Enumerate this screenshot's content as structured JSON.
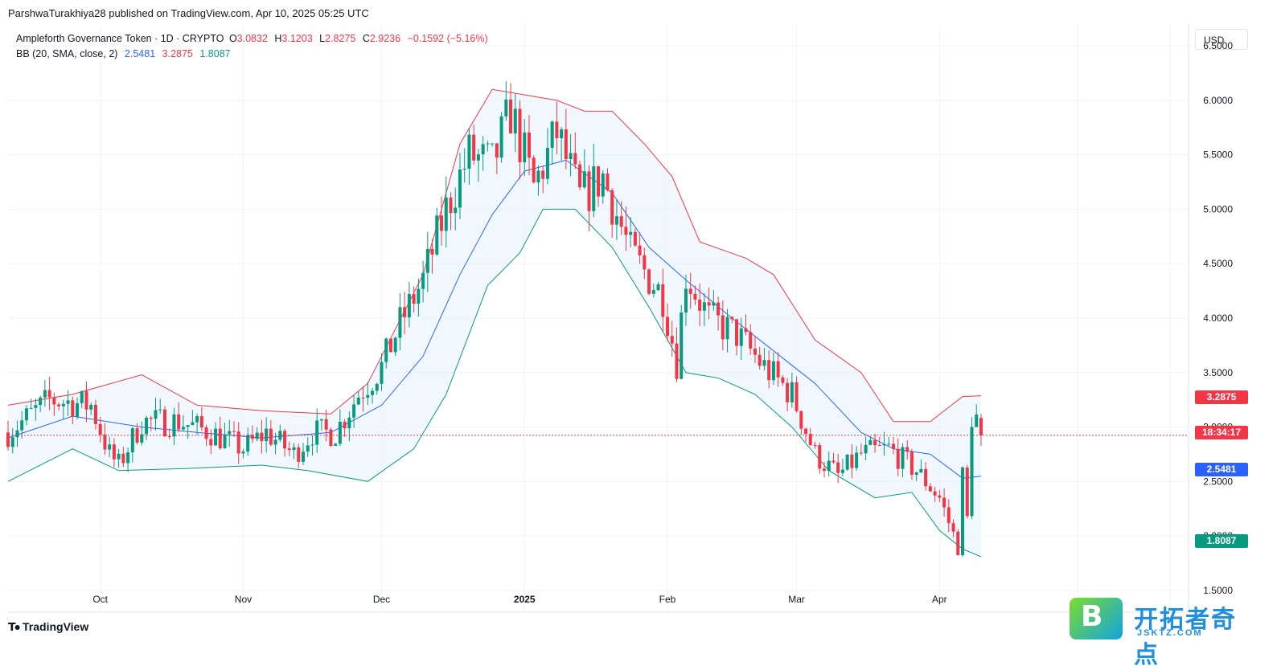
{
  "attribution": "ParshwaTurakhiya28 published on TradingView.com, Apr 10, 2025 05:25 UTC",
  "legend": {
    "symbol": "Ampleforth Governance Token · 1D · CRYPTO",
    "o_label": "O",
    "o": "3.0832",
    "h_label": "H",
    "h": "3.1203",
    "l_label": "L",
    "l": "2.8275",
    "c_label": "C",
    "c": "2.9236",
    "change": "−0.1592 (−5.16%)",
    "bb_label": "BB (20, SMA, close, 2)",
    "bb_basis": "2.5481",
    "bb_upper": "3.2875",
    "bb_lower": "1.8087"
  },
  "currency": "USD",
  "badges": {
    "upper": "3.2875",
    "countdown": "18:34:17",
    "basis": "2.5481",
    "lower": "1.8087"
  },
  "footer": {
    "brand": "TradingView"
  },
  "watermark": {
    "title": "开拓者奇点",
    "url": "JSKTZ.COM",
    "letter": "B"
  },
  "colors": {
    "up": "#089981",
    "down": "#f23645",
    "basis": "#2962ff",
    "upper": "#f23645",
    "lower": "#089981",
    "fill": "#e3f2fd"
  },
  "chart_data": {
    "type": "candlestick",
    "title": "Ampleforth Governance Token · 1D · CRYPTO",
    "ylim": [
      1.3,
      6.7
    ],
    "y_ticks": [
      "6.5000",
      "6.0000",
      "5.5000",
      "5.0000",
      "4.5000",
      "4.0000",
      "3.5000",
      "3.0000",
      "2.5000",
      "2.0000",
      "1.5000"
    ],
    "x_ticks": [
      {
        "label": "Oct",
        "date": "2024-10-01"
      },
      {
        "label": "Nov",
        "date": "2024-11-01"
      },
      {
        "label": "Dec",
        "date": "2024-12-01"
      },
      {
        "label": "2025",
        "date": "2025-01-01",
        "bold": true
      },
      {
        "label": "Feb",
        "date": "2025-02-01"
      },
      {
        "label": "Mar",
        "date": "2025-03-01"
      },
      {
        "label": "Apr",
        "date": "2025-04-01"
      }
    ],
    "x_range": [
      "2024-09-11",
      "2025-05-25"
    ],
    "last_close": 2.9236,
    "close_anchors": [
      [
        "2024-09-11",
        2.95
      ],
      [
        "2024-09-20",
        3.25
      ],
      [
        "2024-09-29",
        3.2
      ],
      [
        "2024-10-03",
        2.75
      ],
      [
        "2024-10-05",
        2.65
      ],
      [
        "2024-10-10",
        3.05
      ],
      [
        "2024-10-18",
        3.05
      ],
      [
        "2024-10-25",
        2.95
      ],
      [
        "2024-11-01",
        2.8
      ],
      [
        "2024-11-06",
        2.95
      ],
      [
        "2024-11-12",
        2.75
      ],
      [
        "2024-11-16",
        2.95
      ],
      [
        "2024-11-21",
        2.95
      ],
      [
        "2024-11-26",
        3.3
      ],
      [
        "2024-12-01",
        3.55
      ],
      [
        "2024-12-05",
        3.95
      ],
      [
        "2024-12-10",
        4.35
      ],
      [
        "2024-12-15",
        5.0
      ],
      [
        "2024-12-20",
        5.5
      ],
      [
        "2024-12-25",
        5.4
      ],
      [
        "2024-12-29",
        5.9
      ],
      [
        "2025-01-03",
        5.2
      ],
      [
        "2025-01-08",
        5.7
      ],
      [
        "2025-01-13",
        5.1
      ],
      [
        "2025-01-18",
        5.3
      ],
      [
        "2025-01-24",
        4.6
      ],
      [
        "2025-01-31",
        4.2
      ],
      [
        "2025-02-03",
        3.6
      ],
      [
        "2025-02-05",
        4.4
      ],
      [
        "2025-02-10",
        4.0
      ],
      [
        "2025-02-16",
        3.85
      ],
      [
        "2025-02-22",
        3.55
      ],
      [
        "2025-02-28",
        3.3
      ],
      [
        "2025-03-05",
        2.75
      ],
      [
        "2025-03-10",
        2.55
      ],
      [
        "2025-03-15",
        2.75
      ],
      [
        "2025-03-21",
        2.8
      ],
      [
        "2025-03-27",
        2.6
      ],
      [
        "2025-04-01",
        2.35
      ],
      [
        "2025-04-05",
        1.9
      ],
      [
        "2025-04-06",
        2.55
      ],
      [
        "2025-04-07",
        2.15
      ],
      [
        "2025-04-08",
        3.1
      ],
      [
        "2025-04-09",
        3.08
      ],
      [
        "2025-04-10",
        2.9236
      ]
    ],
    "bollinger": {
      "basis_label": "2.5481",
      "upper_label": "3.2875",
      "lower_label": "1.8087",
      "upper": [
        [
          "2024-09-11",
          3.2
        ],
        [
          "2024-09-25",
          3.3
        ],
        [
          "2024-10-10",
          3.48
        ],
        [
          "2024-10-22",
          3.2
        ],
        [
          "2024-11-05",
          3.15
        ],
        [
          "2024-11-20",
          3.12
        ],
        [
          "2024-11-28",
          3.4
        ],
        [
          "2024-12-10",
          4.4
        ],
        [
          "2024-12-18",
          5.6
        ],
        [
          "2024-12-25",
          6.1
        ],
        [
          "2025-01-01",
          6.05
        ],
        [
          "2025-01-08",
          6.0
        ],
        [
          "2025-01-14",
          5.9
        ],
        [
          "2025-01-20",
          5.9
        ],
        [
          "2025-01-27",
          5.6
        ],
        [
          "2025-02-02",
          5.3
        ],
        [
          "2025-02-08",
          4.7
        ],
        [
          "2025-02-18",
          4.55
        ],
        [
          "2025-02-24",
          4.4
        ],
        [
          "2025-03-05",
          3.8
        ],
        [
          "2025-03-15",
          3.5
        ],
        [
          "2025-03-22",
          3.05
        ],
        [
          "2025-03-30",
          3.05
        ],
        [
          "2025-04-06",
          3.28
        ],
        [
          "2025-04-10",
          3.2875
        ]
      ],
      "basis": [
        [
          "2024-09-11",
          2.9
        ],
        [
          "2024-09-25",
          3.1
        ],
        [
          "2024-10-10",
          3.0
        ],
        [
          "2024-10-22",
          2.95
        ],
        [
          "2024-11-05",
          2.9
        ],
        [
          "2024-11-20",
          2.95
        ],
        [
          "2024-12-01",
          3.2
        ],
        [
          "2024-12-10",
          3.65
        ],
        [
          "2024-12-18",
          4.4
        ],
        [
          "2024-12-25",
          4.95
        ],
        [
          "2025-01-01",
          5.35
        ],
        [
          "2025-01-10",
          5.45
        ],
        [
          "2025-01-20",
          5.15
        ],
        [
          "2025-01-28",
          4.65
        ],
        [
          "2025-02-05",
          4.35
        ],
        [
          "2025-02-15",
          4.0
        ],
        [
          "2025-02-24",
          3.7
        ],
        [
          "2025-03-05",
          3.4
        ],
        [
          "2025-03-15",
          2.95
        ],
        [
          "2025-03-22",
          2.8
        ],
        [
          "2025-03-30",
          2.75
        ],
        [
          "2025-04-06",
          2.53
        ],
        [
          "2025-04-10",
          2.5481
        ]
      ],
      "lower": [
        [
          "2024-09-11",
          2.5
        ],
        [
          "2024-09-25",
          2.8
        ],
        [
          "2024-10-05",
          2.6
        ],
        [
          "2024-10-20",
          2.62
        ],
        [
          "2024-11-05",
          2.65
        ],
        [
          "2024-11-15",
          2.6
        ],
        [
          "2024-11-28",
          2.5
        ],
        [
          "2024-12-08",
          2.8
        ],
        [
          "2024-12-15",
          3.3
        ],
        [
          "2024-12-24",
          4.3
        ],
        [
          "2024-12-31",
          4.6
        ],
        [
          "2025-01-05",
          5.0
        ],
        [
          "2025-01-12",
          5.0
        ],
        [
          "2025-01-20",
          4.65
        ],
        [
          "2025-01-28",
          4.1
        ],
        [
          "2025-02-05",
          3.5
        ],
        [
          "2025-02-12",
          3.45
        ],
        [
          "2025-02-20",
          3.3
        ],
        [
          "2025-02-28",
          3.0
        ],
        [
          "2025-03-08",
          2.6
        ],
        [
          "2025-03-18",
          2.35
        ],
        [
          "2025-03-26",
          2.4
        ],
        [
          "2025-04-01",
          2.05
        ],
        [
          "2025-04-06",
          1.88
        ],
        [
          "2025-04-10",
          1.8087
        ]
      ]
    }
  }
}
